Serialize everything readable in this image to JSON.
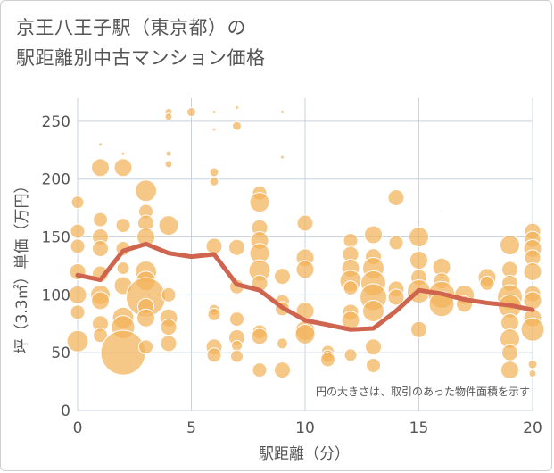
{
  "chart_data": {
    "type": "scatter",
    "title_lines": [
      "京王八王子駅（東京都）の",
      "駅距離別中古マンション価格"
    ],
    "xlabel": "駅距離（分）",
    "ylabel": "坪（3.3㎡）単価（万円）",
    "xlim": [
      0,
      20
    ],
    "ylim": [
      0,
      270
    ],
    "xticks": [
      "0",
      "5",
      "10",
      "15",
      "20"
    ],
    "yticks": [
      "0",
      "50",
      "100",
      "150",
      "200",
      "250"
    ],
    "xtick_values": [
      0,
      5,
      10,
      15,
      20
    ],
    "ytick_values": [
      0,
      50,
      100,
      150,
      200,
      250
    ],
    "grid": true,
    "annotation": "円の大きさは、取引のあった物件面積を示す",
    "colors": {
      "bubble": "#f3b35a",
      "trend": "#d0654f",
      "grid": "#c7d3de"
    },
    "trend_line": {
      "x": [
        0,
        1,
        2,
        3,
        4,
        5,
        6,
        7,
        8,
        9,
        10,
        11,
        12,
        13,
        14,
        15,
        16,
        17,
        18,
        19,
        20
      ],
      "y": [
        117,
        113,
        138,
        144,
        136,
        133,
        135,
        109,
        104,
        89,
        78,
        74,
        70,
        71,
        86,
        104,
        101,
        96,
        93,
        91,
        87
      ]
    },
    "bubbles": [
      [
        0,
        180,
        7
      ],
      [
        0,
        155,
        8
      ],
      [
        0,
        142,
        8
      ],
      [
        0,
        120,
        9
      ],
      [
        0,
        100,
        10
      ],
      [
        0,
        85,
        8
      ],
      [
        0,
        60,
        12
      ],
      [
        1,
        210,
        10
      ],
      [
        1,
        165,
        8
      ],
      [
        1,
        150,
        9
      ],
      [
        1,
        140,
        9
      ],
      [
        1,
        118,
        9
      ],
      [
        1,
        100,
        11
      ],
      [
        1,
        95,
        10
      ],
      [
        1,
        75,
        9
      ],
      [
        1,
        65,
        8
      ],
      [
        1,
        230,
        2
      ],
      [
        2,
        210,
        10
      ],
      [
        2,
        160,
        8
      ],
      [
        2,
        140,
        8
      ],
      [
        2,
        123,
        7
      ],
      [
        2,
        108,
        10
      ],
      [
        2,
        80,
        12
      ],
      [
        2,
        72,
        13
      ],
      [
        2,
        50,
        25
      ],
      [
        2,
        222,
        2
      ],
      [
        3,
        190,
        12
      ],
      [
        3,
        172,
        8
      ],
      [
        3,
        162,
        9
      ],
      [
        3,
        150,
        10
      ],
      [
        3,
        120,
        12
      ],
      [
        3,
        112,
        11
      ],
      [
        3,
        98,
        22
      ],
      [
        3,
        90,
        9
      ],
      [
        3,
        80,
        10
      ],
      [
        3,
        55,
        8
      ],
      [
        4,
        258,
        4
      ],
      [
        4,
        254,
        4
      ],
      [
        4,
        222,
        3
      ],
      [
        4,
        213,
        4
      ],
      [
        4,
        160,
        11
      ],
      [
        4,
        100,
        8
      ],
      [
        4,
        80,
        10
      ],
      [
        4,
        72,
        9
      ],
      [
        4,
        58,
        9
      ],
      [
        5,
        258,
        5
      ],
      [
        6,
        258,
        2
      ],
      [
        6,
        243,
        2
      ],
      [
        6,
        206,
        5
      ],
      [
        6,
        198,
        5
      ],
      [
        6,
        142,
        9
      ],
      [
        6,
        87,
        6
      ],
      [
        6,
        83,
        7
      ],
      [
        6,
        55,
        9
      ],
      [
        6,
        48,
        8
      ],
      [
        7,
        262,
        2
      ],
      [
        7,
        246,
        5
      ],
      [
        7,
        141,
        9
      ],
      [
        7,
        107,
        8
      ],
      [
        7,
        79,
        8
      ],
      [
        7,
        63,
        9
      ],
      [
        7,
        56,
        6
      ],
      [
        7,
        47,
        7
      ],
      [
        8,
        188,
        8
      ],
      [
        8,
        180,
        11
      ],
      [
        8,
        158,
        9
      ],
      [
        8,
        147,
        10
      ],
      [
        8,
        136,
        11
      ],
      [
        8,
        121,
        12
      ],
      [
        8,
        110,
        9
      ],
      [
        8,
        68,
        8
      ],
      [
        8,
        64,
        9
      ],
      [
        8,
        35,
        8
      ],
      [
        9,
        258,
        2
      ],
      [
        9,
        219,
        2
      ],
      [
        9,
        116,
        9
      ],
      [
        9,
        94,
        8
      ],
      [
        9,
        88,
        8
      ],
      [
        9,
        58,
        6
      ],
      [
        9,
        35,
        9
      ],
      [
        10,
        162,
        9
      ],
      [
        10,
        132,
        10
      ],
      [
        10,
        122,
        10
      ],
      [
        10,
        86,
        10
      ],
      [
        10,
        69,
        11
      ],
      [
        10,
        66,
        11
      ],
      [
        11,
        51,
        7
      ],
      [
        11,
        47,
        7
      ],
      [
        11,
        44,
        8
      ],
      [
        12,
        147,
        8
      ],
      [
        12,
        135,
        9
      ],
      [
        12,
        123,
        10
      ],
      [
        12,
        112,
        12
      ],
      [
        12,
        106,
        8
      ],
      [
        12,
        85,
        9
      ],
      [
        12,
        78,
        10
      ],
      [
        12,
        48,
        7
      ],
      [
        13,
        152,
        10
      ],
      [
        13,
        133,
        9
      ],
      [
        13,
        123,
        12
      ],
      [
        13,
        110,
        14
      ],
      [
        13,
        98,
        15
      ],
      [
        13,
        86,
        12
      ],
      [
        13,
        55,
        9
      ],
      [
        13,
        39,
        8
      ],
      [
        14,
        184,
        9
      ],
      [
        14,
        145,
        8
      ],
      [
        14,
        105,
        9
      ],
      [
        14,
        98,
        9
      ],
      [
        15,
        150,
        11
      ],
      [
        15,
        130,
        10
      ],
      [
        15,
        115,
        9
      ],
      [
        15,
        103,
        13
      ],
      [
        15,
        70,
        9
      ],
      [
        16,
        124,
        10
      ],
      [
        16,
        112,
        9
      ],
      [
        16,
        100,
        15
      ],
      [
        16,
        92,
        14
      ],
      [
        16,
        173,
        1
      ],
      [
        17,
        100,
        11
      ],
      [
        17,
        92,
        9
      ],
      [
        18,
        115,
        10
      ],
      [
        18,
        110,
        8
      ],
      [
        19,
        143,
        11
      ],
      [
        19,
        122,
        9
      ],
      [
        19,
        110,
        9
      ],
      [
        19,
        98,
        14
      ],
      [
        19,
        90,
        13
      ],
      [
        19,
        76,
        10
      ],
      [
        19,
        62,
        11
      ],
      [
        19,
        50,
        9
      ],
      [
        19,
        35,
        10
      ],
      [
        20,
        155,
        9
      ],
      [
        20,
        148,
        9
      ],
      [
        20,
        140,
        10
      ],
      [
        20,
        132,
        9
      ],
      [
        20,
        120,
        10
      ],
      [
        20,
        101,
        9
      ],
      [
        20,
        95,
        10
      ],
      [
        20,
        80,
        10
      ],
      [
        20,
        70,
        13
      ],
      [
        20,
        40,
        5
      ],
      [
        20,
        32,
        4
      ]
    ]
  }
}
